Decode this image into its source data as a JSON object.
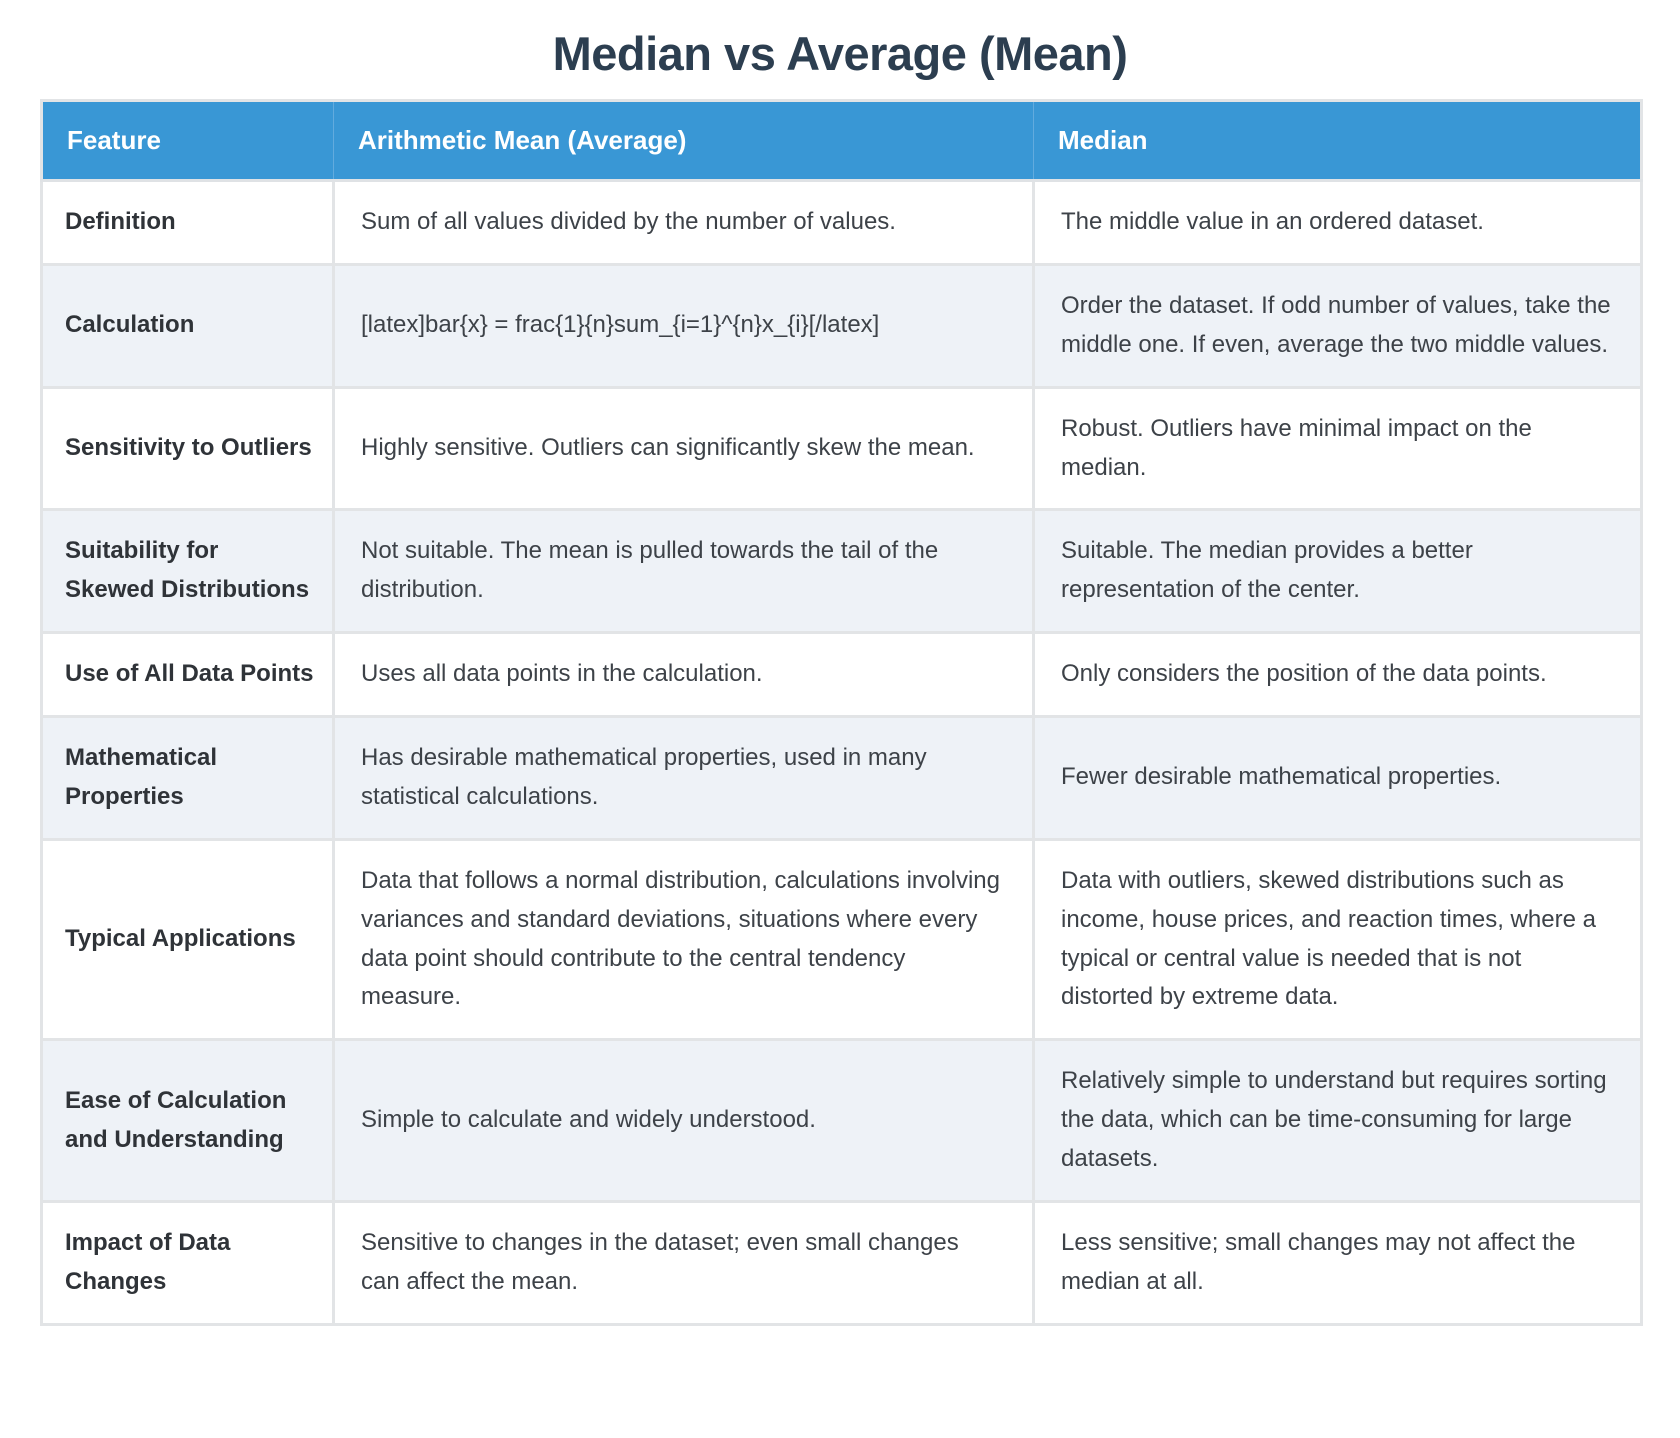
{
  "page": {
    "title": "Median vs Average (Mean)"
  },
  "colors": {
    "header_bg": "#3997d5",
    "title_color": "#2c3e50",
    "stripe_bg": "#eef2f7",
    "border_color": "#e2e4e6",
    "body_text": "#3d4248"
  },
  "table": {
    "columns": [
      {
        "label": "Feature"
      },
      {
        "label": "Arithmetic Mean (Average)"
      },
      {
        "label": "Median"
      }
    ],
    "rows": [
      {
        "feature": "Definition",
        "mean": "Sum of all values divided by the number of values.",
        "median": "The middle value in an ordered dataset."
      },
      {
        "feature": "Calculation",
        "mean": "[latex]bar{x} = frac{1}{n}sum_{i=1}^{n}x_{i}[/latex]",
        "median": "Order the dataset. If odd number of values, take the middle one. If even, average the two middle values."
      },
      {
        "feature": "Sensitivity to Outliers",
        "mean": "Highly sensitive. Outliers can significantly skew the mean.",
        "median": "Robust. Outliers have minimal impact on the median."
      },
      {
        "feature": "Suitability for Skewed Distributions",
        "mean": "Not suitable. The mean is pulled towards the tail of the distribution.",
        "median": "Suitable. The median provides a better representation of the center."
      },
      {
        "feature": "Use of All Data Points",
        "mean": "Uses all data points in the calculation.",
        "median": "Only considers the position of the data points."
      },
      {
        "feature": "Mathematical Properties",
        "mean": "Has desirable mathematical properties, used in many statistical calculations.",
        "median": "Fewer desirable mathematical properties."
      },
      {
        "feature": "Typical Applications",
        "mean": "Data that follows a normal distribution, calculations involving variances and standard deviations, situations where every data point should contribute to the central tendency measure.",
        "median": "Data with outliers, skewed distributions such as income, house prices, and reaction times, where a typical or central value is needed that is not distorted by extreme data."
      },
      {
        "feature": "Ease of Calculation and Understanding",
        "mean": "Simple to calculate and widely understood.",
        "median": "Relatively simple to understand but requires sorting the data, which can be time-consuming for large datasets."
      },
      {
        "feature": "Impact of Data Changes",
        "mean": "Sensitive to changes in the dataset; even small changes can affect the mean.",
        "median": "Less sensitive; small changes may not affect the median at all."
      }
    ]
  }
}
